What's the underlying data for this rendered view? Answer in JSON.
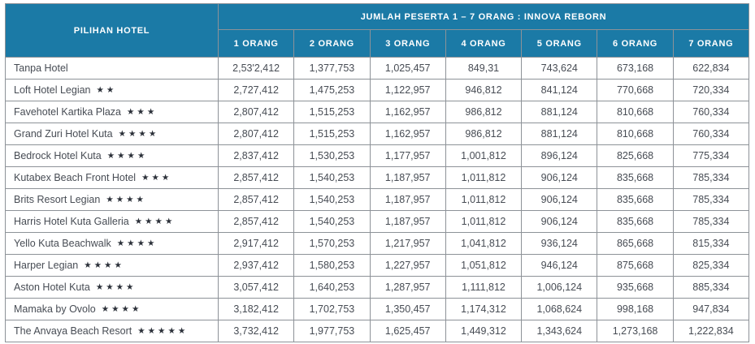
{
  "table": {
    "header": {
      "hotel_col": "PILIHAN HOTEL",
      "group_title": "JUMLAH PESERTA 1 – 7 ORANG : INNOVA REBORN",
      "cols": [
        "1 ORANG",
        "2 ORANG",
        "3 ORANG",
        "4 ORANG",
        "5 ORANG",
        "6 ORANG",
        "7 ORANG"
      ]
    },
    "rows": [
      {
        "hotel": "Tanpa Hotel",
        "stars": 0,
        "prices": [
          "2,53'2,412",
          "1,377,753",
          "1,025,457",
          "849,31",
          "743,624",
          "673,168",
          "622,834"
        ]
      },
      {
        "hotel": "Loft Hotel Legian",
        "stars": 2,
        "prices": [
          "2,727,412",
          "1,475,253",
          "1,122,957",
          "946,812",
          "841,124",
          "770,668",
          "720,334"
        ]
      },
      {
        "hotel": "Favehotel Kartika Plaza",
        "stars": 3,
        "prices": [
          "2,807,412",
          "1,515,253",
          "1,162,957",
          "986,812",
          "881,124",
          "810,668",
          "760,334"
        ]
      },
      {
        "hotel": "Grand Zuri Hotel Kuta",
        "stars": 4,
        "prices": [
          "2,807,412",
          "1,515,253",
          "1,162,957",
          "986,812",
          "881,124",
          "810,668",
          "760,334"
        ]
      },
      {
        "hotel": "Bedrock Hotel Kuta",
        "stars": 4,
        "prices": [
          "2,837,412",
          "1,530,253",
          "1,177,957",
          "1,001,812",
          "896,124",
          "825,668",
          "775,334"
        ]
      },
      {
        "hotel": "Kutabex Beach Front Hotel",
        "stars": 3,
        "prices": [
          "2,857,412",
          "1,540,253",
          "1,187,957",
          "1,011,812",
          "906,124",
          "835,668",
          "785,334"
        ]
      },
      {
        "hotel": "Brits Resort Legian",
        "stars": 4,
        "prices": [
          "2,857,412",
          "1,540,253",
          "1,187,957",
          "1,011,812",
          "906,124",
          "835,668",
          "785,334"
        ]
      },
      {
        "hotel": "Harris Hotel Kuta Galleria",
        "stars": 4,
        "prices": [
          "2,857,412",
          "1,540,253",
          "1,187,957",
          "1,011,812",
          "906,124",
          "835,668",
          "785,334"
        ]
      },
      {
        "hotel": "Yello Kuta Beachwalk",
        "stars": 4,
        "prices": [
          "2,917,412",
          "1,570,253",
          "1,217,957",
          "1,041,812",
          "936,124",
          "865,668",
          "815,334"
        ]
      },
      {
        "hotel": "Harper Legian",
        "stars": 4,
        "prices": [
          "2,937,412",
          "1,580,253",
          "1,227,957",
          "1,051,812",
          "946,124",
          "875,668",
          "825,334"
        ]
      },
      {
        "hotel": "Aston Hotel Kuta",
        "stars": 4,
        "prices": [
          "3,057,412",
          "1,640,253",
          "1,287,957",
          "1,111,812",
          "1,006,124",
          "935,668",
          "885,334"
        ]
      },
      {
        "hotel": "Mamaka by Ovolo",
        "stars": 4,
        "prices": [
          "3,182,412",
          "1,702,753",
          "1,350,457",
          "1,174,312",
          "1,068,624",
          "998,168",
          "947,834"
        ]
      },
      {
        "hotel": "The Anvaya Beach Resort",
        "stars": 5,
        "prices": [
          "3,732,412",
          "1,977,753",
          "1,625,457",
          "1,449,312",
          "1,343,624",
          "1,273,168",
          "1,222,834"
        ]
      }
    ],
    "star_glyph": "★"
  },
  "colors": {
    "header_bg": "#1b7aa6",
    "header_text": "#ffffff",
    "grid_border": "#8d9298",
    "body_text": "#474c54",
    "star": "#2b3039"
  }
}
